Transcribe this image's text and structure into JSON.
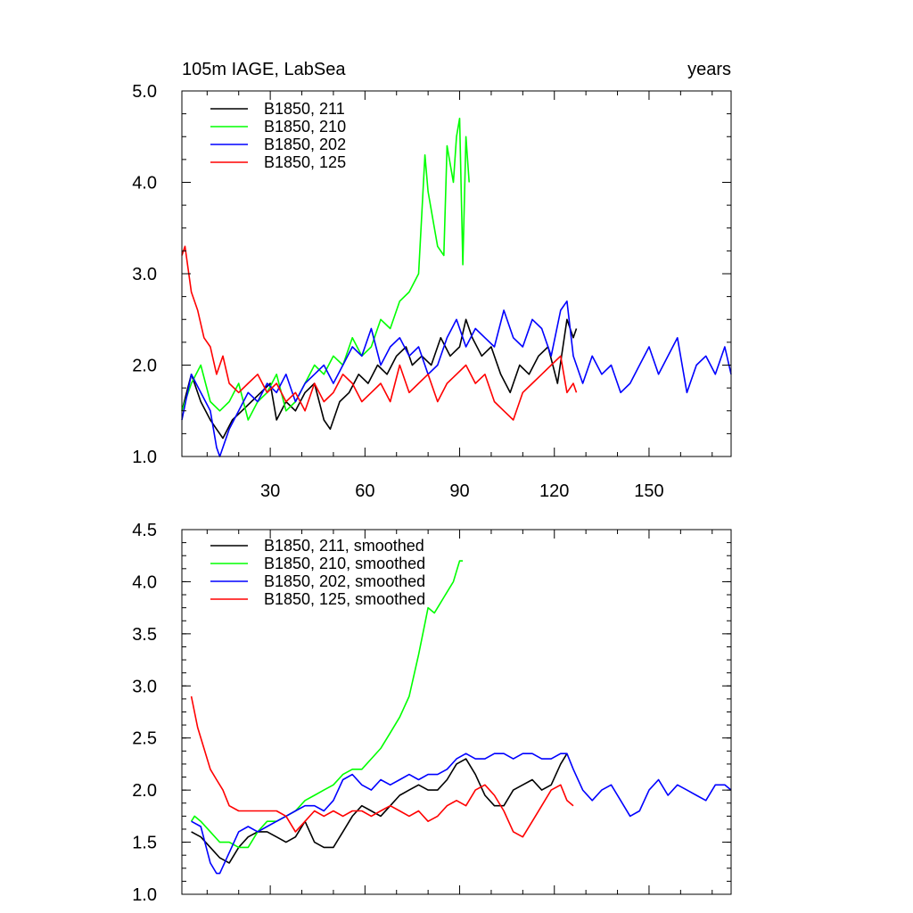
{
  "chart_data": [
    {
      "type": "line",
      "title": "105m IAGE, LabSea",
      "right_title": "years",
      "xlim": [
        2,
        176
      ],
      "ylim": [
        1.0,
        5.0
      ],
      "x_ticks": [
        30,
        60,
        90,
        120,
        150
      ],
      "x_tick_labels": [
        "30",
        "60",
        "90",
        "120",
        "150"
      ],
      "y_ticks": [
        1.0,
        2.0,
        3.0,
        4.0,
        5.0
      ],
      "y_tick_labels": [
        "1.0",
        "2.0",
        "3.0",
        "4.0",
        "5.0"
      ],
      "legend_position": "top-left",
      "series": [
        {
          "name": "B1850, 211",
          "color": "#000000",
          "x": [
            2,
            5,
            8,
            11,
            13,
            15,
            18,
            21,
            24,
            27,
            30,
            32,
            35,
            38,
            41,
            44,
            47,
            49,
            52,
            55,
            58,
            61,
            64,
            67,
            70,
            73,
            75,
            78,
            81,
            84,
            87,
            90,
            92,
            94,
            97,
            100,
            103,
            106,
            109,
            112,
            115,
            118,
            121,
            124,
            126,
            127
          ],
          "y": [
            1.5,
            1.9,
            1.6,
            1.4,
            1.3,
            1.2,
            1.4,
            1.5,
            1.6,
            1.7,
            1.8,
            1.4,
            1.6,
            1.5,
            1.7,
            1.8,
            1.4,
            1.3,
            1.6,
            1.7,
            1.9,
            1.8,
            2.0,
            1.9,
            2.1,
            2.2,
            2.0,
            2.1,
            2.0,
            2.3,
            2.1,
            2.2,
            2.5,
            2.3,
            2.1,
            2.2,
            1.9,
            1.7,
            2.0,
            1.9,
            2.1,
            2.2,
            1.8,
            2.5,
            2.3,
            2.4
          ]
        },
        {
          "name": "B1850, 210",
          "color": "#00ff00",
          "x": [
            2,
            5,
            8,
            11,
            14,
            17,
            20,
            23,
            26,
            29,
            32,
            35,
            38,
            41,
            44,
            47,
            50,
            53,
            56,
            59,
            62,
            65,
            68,
            71,
            74,
            77,
            79,
            80,
            82,
            83,
            85,
            86,
            88,
            89,
            90,
            91,
            92,
            93
          ],
          "y": [
            1.5,
            1.8,
            2.0,
            1.6,
            1.5,
            1.6,
            1.8,
            1.4,
            1.6,
            1.7,
            1.9,
            1.5,
            1.6,
            1.8,
            2.0,
            1.9,
            2.1,
            2.0,
            2.3,
            2.1,
            2.2,
            2.5,
            2.4,
            2.7,
            2.8,
            3.0,
            4.3,
            3.9,
            3.5,
            3.3,
            3.2,
            4.4,
            4.0,
            4.5,
            4.7,
            3.1,
            4.5,
            4.0
          ]
        },
        {
          "name": "B1850, 202",
          "color": "#0000ff",
          "x": [
            2,
            5,
            8,
            11,
            13,
            14,
            17,
            20,
            23,
            26,
            29,
            32,
            35,
            38,
            41,
            44,
            47,
            50,
            53,
            56,
            59,
            62,
            65,
            68,
            71,
            74,
            77,
            80,
            83,
            86,
            89,
            92,
            95,
            98,
            101,
            104,
            107,
            110,
            113,
            116,
            119,
            122,
            124,
            126,
            129,
            132,
            135,
            138,
            141,
            144,
            147,
            150,
            153,
            156,
            159,
            162,
            165,
            168,
            171,
            174,
            176
          ],
          "y": [
            1.4,
            1.9,
            1.7,
            1.5,
            1.1,
            1.0,
            1.3,
            1.5,
            1.7,
            1.6,
            1.8,
            1.7,
            1.9,
            1.6,
            1.8,
            1.9,
            2.0,
            1.8,
            2.0,
            2.2,
            2.1,
            2.4,
            2.0,
            2.2,
            2.3,
            2.1,
            2.2,
            1.9,
            2.0,
            2.3,
            2.5,
            2.2,
            2.4,
            2.3,
            2.2,
            2.6,
            2.3,
            2.2,
            2.5,
            2.4,
            2.1,
            2.6,
            2.7,
            2.1,
            1.8,
            2.1,
            1.9,
            2.0,
            1.7,
            1.8,
            2.0,
            2.2,
            1.9,
            2.1,
            2.3,
            1.7,
            2.0,
            2.1,
            1.9,
            2.2,
            1.9
          ]
        },
        {
          "name": "B1850, 125",
          "color": "#ff0000",
          "x": [
            2,
            3,
            5,
            7,
            9,
            11,
            13,
            15,
            17,
            20,
            23,
            26,
            29,
            32,
            35,
            38,
            41,
            44,
            47,
            50,
            53,
            56,
            59,
            62,
            65,
            68,
            71,
            74,
            77,
            80,
            83,
            86,
            89,
            92,
            95,
            98,
            101,
            104,
            107,
            110,
            113,
            116,
            119,
            122,
            124,
            126,
            127
          ],
          "y": [
            3.2,
            3.3,
            2.8,
            2.6,
            2.3,
            2.2,
            1.9,
            2.1,
            1.8,
            1.7,
            1.8,
            1.9,
            1.7,
            1.8,
            1.6,
            1.7,
            1.5,
            1.8,
            1.6,
            1.7,
            1.9,
            1.8,
            1.6,
            1.7,
            1.8,
            1.6,
            2.0,
            1.7,
            1.8,
            1.9,
            1.6,
            1.8,
            1.9,
            2.0,
            1.8,
            1.9,
            1.6,
            1.5,
            1.4,
            1.7,
            1.8,
            1.9,
            2.0,
            2.1,
            1.7,
            1.8,
            1.7
          ]
        }
      ]
    },
    {
      "type": "line",
      "xlim": [
        2,
        176
      ],
      "ylim": [
        1.0,
        4.5
      ],
      "y_ticks": [
        1.0,
        1.5,
        2.0,
        2.5,
        3.0,
        3.5,
        4.0,
        4.5
      ],
      "y_tick_labels": [
        "1.0",
        "1.5",
        "2.0",
        "2.5",
        "3.0",
        "3.5",
        "4.0",
        "4.5"
      ],
      "x_ticks": [
        30,
        60,
        90,
        120,
        150
      ],
      "legend_position": "top-left",
      "series": [
        {
          "name": "B1850, 211, smoothed",
          "color": "#000000",
          "x": [
            5,
            8,
            11,
            14,
            17,
            20,
            23,
            26,
            29,
            32,
            35,
            38,
            41,
            44,
            47,
            50,
            53,
            56,
            59,
            62,
            65,
            68,
            71,
            74,
            77,
            80,
            83,
            86,
            89,
            92,
            95,
            98,
            101,
            104,
            107,
            110,
            113,
            116,
            119,
            122,
            124
          ],
          "y": [
            1.6,
            1.55,
            1.45,
            1.35,
            1.3,
            1.45,
            1.55,
            1.6,
            1.6,
            1.55,
            1.5,
            1.55,
            1.7,
            1.5,
            1.45,
            1.45,
            1.6,
            1.75,
            1.85,
            1.8,
            1.75,
            1.85,
            1.95,
            2.0,
            2.05,
            2.0,
            2.0,
            2.1,
            2.25,
            2.3,
            2.15,
            1.95,
            1.85,
            1.85,
            2.0,
            2.05,
            2.1,
            2.0,
            2.05,
            2.25,
            2.35
          ]
        },
        {
          "name": "B1850, 210, smoothed",
          "color": "#00ff00",
          "x": [
            5,
            6,
            8,
            11,
            14,
            17,
            20,
            23,
            26,
            29,
            32,
            35,
            38,
            41,
            44,
            47,
            50,
            53,
            56,
            59,
            62,
            65,
            68,
            71,
            74,
            77,
            79,
            80,
            82,
            83,
            85,
            86,
            88,
            89,
            90,
            91
          ],
          "y": [
            1.7,
            1.75,
            1.7,
            1.6,
            1.5,
            1.5,
            1.45,
            1.45,
            1.6,
            1.7,
            1.7,
            1.75,
            1.8,
            1.9,
            1.95,
            2.0,
            2.05,
            2.15,
            2.2,
            2.2,
            2.3,
            2.4,
            2.55,
            2.7,
            2.9,
            3.3,
            3.6,
            3.75,
            3.7,
            3.75,
            3.85,
            3.9,
            4.0,
            4.1,
            4.2,
            4.2
          ]
        },
        {
          "name": "B1850, 202, smoothed",
          "color": "#0000ff",
          "x": [
            5,
            8,
            11,
            13,
            14,
            17,
            20,
            23,
            26,
            29,
            32,
            35,
            38,
            41,
            44,
            47,
            50,
            53,
            56,
            59,
            62,
            65,
            68,
            71,
            74,
            77,
            80,
            83,
            86,
            89,
            92,
            95,
            98,
            101,
            104,
            107,
            110,
            113,
            116,
            119,
            122,
            124,
            126,
            129,
            132,
            135,
            138,
            141,
            144,
            147,
            150,
            153,
            156,
            159,
            162,
            165,
            168,
            171,
            174,
            176
          ],
          "y": [
            1.7,
            1.65,
            1.3,
            1.2,
            1.2,
            1.4,
            1.6,
            1.65,
            1.6,
            1.65,
            1.7,
            1.75,
            1.8,
            1.85,
            1.85,
            1.8,
            1.9,
            2.1,
            2.15,
            2.05,
            2.0,
            2.1,
            2.05,
            2.1,
            2.15,
            2.1,
            2.15,
            2.15,
            2.2,
            2.3,
            2.35,
            2.3,
            2.3,
            2.35,
            2.35,
            2.3,
            2.35,
            2.35,
            2.3,
            2.3,
            2.35,
            2.35,
            2.2,
            2.0,
            1.9,
            2.0,
            2.05,
            1.9,
            1.75,
            1.8,
            2.0,
            2.1,
            1.95,
            2.05,
            2.0,
            1.95,
            1.9,
            2.05,
            2.05,
            2.0
          ]
        },
        {
          "name": "B1850, 125, smoothed",
          "color": "#ff0000",
          "x": [
            5,
            7,
            9,
            11,
            13,
            15,
            17,
            20,
            23,
            26,
            29,
            32,
            35,
            38,
            41,
            44,
            47,
            50,
            53,
            56,
            59,
            62,
            65,
            68,
            71,
            74,
            77,
            80,
            83,
            86,
            89,
            92,
            95,
            98,
            101,
            104,
            107,
            110,
            113,
            116,
            119,
            122,
            124,
            126
          ],
          "y": [
            2.9,
            2.6,
            2.4,
            2.2,
            2.1,
            2.0,
            1.85,
            1.8,
            1.8,
            1.8,
            1.8,
            1.8,
            1.75,
            1.6,
            1.7,
            1.8,
            1.75,
            1.8,
            1.75,
            1.8,
            1.8,
            1.75,
            1.8,
            1.85,
            1.8,
            1.75,
            1.8,
            1.7,
            1.75,
            1.85,
            1.9,
            1.85,
            2.0,
            2.05,
            1.95,
            1.8,
            1.6,
            1.55,
            1.7,
            1.85,
            2.0,
            2.05,
            1.9,
            1.85
          ]
        }
      ]
    }
  ]
}
